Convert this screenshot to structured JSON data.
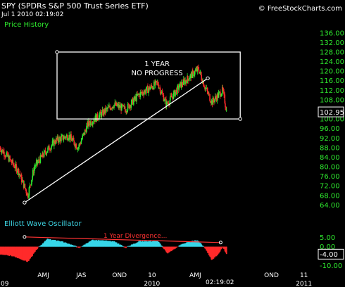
{
  "header": {
    "title": "SPY (SPDRs S&P 500 Trust Series ETF)",
    "datetime": "Jul 1 2010 02:19:02",
    "credit": "© FreeStockCharts.com",
    "time_label": "02:19:02"
  },
  "panels": {
    "price_title": "Price History",
    "ewo_title": "Elliott Wave Oscillator"
  },
  "colors": {
    "up": "#2ee82e",
    "down": "#ff2a2a",
    "ewo_pos": "#37d6e8",
    "ewo_neg": "#ff2a2a",
    "annotation": "#ffffff",
    "divergence": "#ff3333"
  },
  "chart_data": [
    {
      "type": "candlestick",
      "title": "Price History",
      "ylim": [
        60,
        138
      ],
      "y_ticks": [
        "136.00",
        "132.00",
        "128.00",
        "124.00",
        "120.00",
        "116.00",
        "112.00",
        "108.00",
        "104.00",
        "100.00",
        "96.00",
        "92.00",
        "88.00",
        "84.00",
        "80.00",
        "76.00",
        "72.00",
        "68.00",
        "64.00"
      ],
      "last_price": "102.95",
      "x_start": "2009-01-01",
      "x_end": "2011-02-01",
      "x_tick_labels": [
        {
          "label": "09",
          "date": "2009-01-01"
        },
        {
          "label": "AMJ",
          "date": "2009-04-15"
        },
        {
          "label": "JAS",
          "date": "2009-07-15"
        },
        {
          "label": "OND",
          "date": "2009-10-15"
        },
        {
          "label": "10",
          "date": "2010-01-01"
        },
        {
          "label": "AMJ",
          "date": "2010-04-15"
        },
        {
          "label": "OND",
          "date": "2010-10-15"
        },
        {
          "label": "11",
          "date": "2011-01-01"
        }
      ],
      "x_year_labels": [
        {
          "label": "09",
          "date": "2009-01-01"
        },
        {
          "label": "2010",
          "date": "2010-01-01"
        },
        {
          "label": "2011",
          "date": "2011-01-01"
        }
      ],
      "price_path": [
        {
          "date": "2009-01-01",
          "close": 88
        },
        {
          "date": "2009-01-20",
          "close": 84
        },
        {
          "date": "2009-02-15",
          "close": 78
        },
        {
          "date": "2009-03-09",
          "close": 68
        },
        {
          "date": "2009-03-25",
          "close": 80
        },
        {
          "date": "2009-04-20",
          "close": 86
        },
        {
          "date": "2009-05-15",
          "close": 91
        },
        {
          "date": "2009-06-15",
          "close": 93
        },
        {
          "date": "2009-07-08",
          "close": 88
        },
        {
          "date": "2009-08-01",
          "close": 98
        },
        {
          "date": "2009-09-01",
          "close": 102
        },
        {
          "date": "2009-10-01",
          "close": 106
        },
        {
          "date": "2009-10-30",
          "close": 104
        },
        {
          "date": "2009-11-30",
          "close": 110
        },
        {
          "date": "2010-01-15",
          "close": 115
        },
        {
          "date": "2010-02-05",
          "close": 106
        },
        {
          "date": "2010-03-10",
          "close": 114
        },
        {
          "date": "2010-04-23",
          "close": 121
        },
        {
          "date": "2010-05-07",
          "close": 114
        },
        {
          "date": "2010-05-25",
          "close": 107
        },
        {
          "date": "2010-06-10",
          "close": 110
        },
        {
          "date": "2010-06-20",
          "close": 112
        },
        {
          "date": "2010-06-30",
          "close": 103
        }
      ],
      "annotations": {
        "box_text_1": "1 YEAR",
        "box_text_2": "NO PROGRESS",
        "box": {
          "date_start": "2009-05-18",
          "date_end": "2010-08-01",
          "price_high": 128,
          "price_low": 100
        },
        "trendline": {
          "date_start": "2009-03-01",
          "price_start": 65,
          "date_end": "2010-05-15",
          "price_end": 117
        }
      }
    },
    {
      "type": "histogram",
      "title": "Elliott Wave Oscillator",
      "ylim": [
        -12.5,
        8.5
      ],
      "y_ticks": [
        "5.00",
        "0.00",
        "-4.00",
        "-10.00"
      ],
      "divergence_label": "1 Year Divergence...",
      "divergence": {
        "date_start": "2009-03-01",
        "value_start": 5.2,
        "date_end": "2010-06-15",
        "value_end": 2.2
      },
      "ewo_path": [
        {
          "date": "2009-01-01",
          "value": -4
        },
        {
          "date": "2009-02-01",
          "value": -5
        },
        {
          "date": "2009-03-09",
          "value": -8
        },
        {
          "date": "2009-04-01",
          "value": -1
        },
        {
          "date": "2009-04-25",
          "value": 4
        },
        {
          "date": "2009-05-25",
          "value": 3
        },
        {
          "date": "2009-06-15",
          "value": 1.5
        },
        {
          "date": "2009-07-10",
          "value": -0.5
        },
        {
          "date": "2009-08-10",
          "value": 3.5
        },
        {
          "date": "2009-09-10",
          "value": 3.2
        },
        {
          "date": "2009-10-05",
          "value": 2.5
        },
        {
          "date": "2009-10-30",
          "value": -0.5
        },
        {
          "date": "2009-12-01",
          "value": 2.8
        },
        {
          "date": "2010-01-15",
          "value": 3
        },
        {
          "date": "2010-02-08",
          "value": -3.5
        },
        {
          "date": "2010-03-15",
          "value": 1.5
        },
        {
          "date": "2010-04-20",
          "value": 3.5
        },
        {
          "date": "2010-05-10",
          "value": -1
        },
        {
          "date": "2010-05-25",
          "value": -7
        },
        {
          "date": "2010-06-10",
          "value": -4
        },
        {
          "date": "2010-06-20",
          "value": 0
        },
        {
          "date": "2010-06-30",
          "value": -4
        }
      ]
    }
  ]
}
